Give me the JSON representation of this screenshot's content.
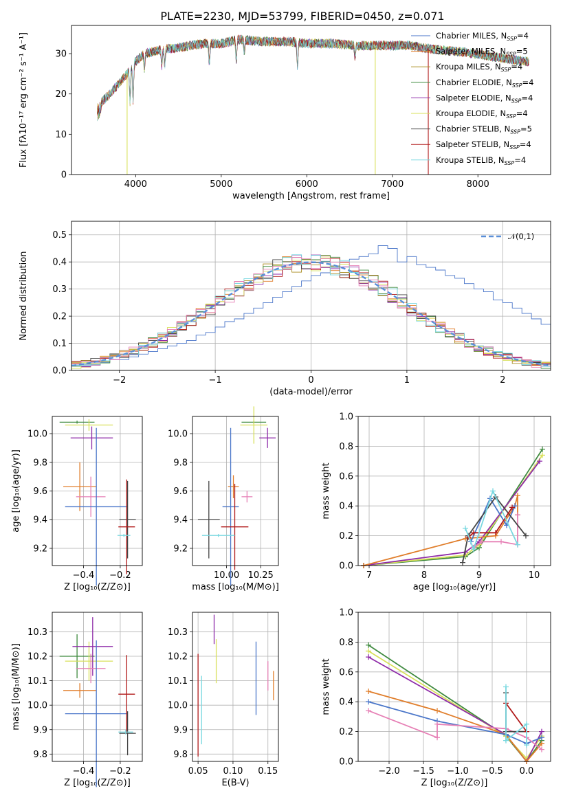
{
  "figure": {
    "title": "PLATE=2230, MJD=53799, FIBERID=0450, z=0.071"
  },
  "colors": {
    "chabrier_miles": "#4a76c9",
    "salpeter_miles": "#e07d2a",
    "kroupa_miles": "#a88a1c",
    "chabrier_elodie": "#3f8a3f",
    "salpeter_elodie": "#8e2aa8",
    "kroupa_elodie": "#d8e05a",
    "chabrier_stelib": "#444444",
    "salpeter_stelib": "#b01818",
    "kroupa_stelib": "#78d8e0",
    "pink": "#e67fb5",
    "normal": "#5a8fd8",
    "grid": "#b0b0b0"
  },
  "chart_data": [
    {
      "id": "spectrum",
      "type": "line",
      "title": "PLATE=2230, MJD=53799, FIBERID=0450, z=0.071",
      "xlabel": "wavelength [Angstrom, rest frame]",
      "ylabel": "Flux [fλ10⁻¹⁷ erg cm⁻² s⁻¹ A⁻¹]",
      "xlim": [
        3250,
        8850
      ],
      "ylim": [
        0,
        37
      ],
      "xticks": [
        4000,
        5000,
        6000,
        7000,
        8000
      ],
      "yticks": [
        0,
        10,
        20,
        30
      ],
      "grid": false,
      "legend_position": "top-right",
      "legend": [
        "Chabrier MILES, Nₛₚₚ=4",
        "Salpeter MILES, Nₛₚₚ=5",
        "Kroupa MILES, Nₛₚₚ=4",
        "Chabrier ELODIE, Nₛₚₚ=4",
        "Salpeter ELODIE, Nₛₚₚ=4",
        "Kroupa ELODIE, Nₛₚₚ=4",
        "Chabrier STELIB, Nₛₚₚ=5",
        "Salpeter STELIB, Nₛₚₚ=4",
        "Kroupa STELIB, Nₛₚₚ=4"
      ],
      "legend_display": [
        "Chabrier MILES, N_SSP=4",
        "Salpeter MILES, N_SSP=5",
        "Kroupa MILES, N_SSP=4",
        "Chabrier ELODIE, N_SSP=4",
        "Salpeter ELODIE, N_SSP=4",
        "Kroupa ELODIE, N_SSP=4",
        "Chabrier STELIB, N_SSP=5",
        "Salpeter STELIB, N_SSP=4",
        "Kroupa STELIB, N_SSP=4"
      ],
      "continuum": {
        "x": [
          3550,
          3700,
          3900,
          4000,
          4100,
          4300,
          4500,
          4800,
          5000,
          5200,
          5500,
          5800,
          6000,
          6300,
          6600,
          6900,
          7200,
          7500,
          7800,
          8100,
          8400,
          8600
        ],
        "y": [
          17,
          20,
          25,
          28,
          30,
          31,
          31.5,
          32.5,
          32.5,
          33.5,
          33,
          33,
          32.5,
          32.5,
          32,
          32,
          32,
          31,
          30.5,
          29.5,
          28.5,
          28
        ]
      },
      "absorption_lines": [
        {
          "x": 3934,
          "depth": 8
        },
        {
          "x": 3969,
          "depth": 9
        },
        {
          "x": 4102,
          "depth": 4
        },
        {
          "x": 4305,
          "depth": 4
        },
        {
          "x": 4340,
          "depth": 4
        },
        {
          "x": 4861,
          "depth": 5
        },
        {
          "x": 5175,
          "depth": 5
        },
        {
          "x": 5270,
          "depth": 3
        },
        {
          "x": 5892,
          "depth": 6
        },
        {
          "x": 6563,
          "depth": 3
        }
      ],
      "dropouts": [
        {
          "x": 3900,
          "color_key": "kroupa_elodie"
        },
        {
          "x": 6800,
          "color_key": "kroupa_elodie"
        },
        {
          "x": 7420,
          "color_key": "salpeter_stelib"
        }
      ]
    },
    {
      "id": "residuals",
      "type": "bar",
      "xlabel": "(data-model)/error",
      "ylabel": "Normed distribution",
      "xlim": [
        -2.5,
        2.5
      ],
      "ylim": [
        0,
        0.55
      ],
      "xticks": [
        -2,
        -1,
        0,
        1,
        2
      ],
      "yticks": [
        0.0,
        0.1,
        0.2,
        0.3,
        0.4,
        0.5
      ],
      "grid": true,
      "legend": [
        "𝒩(0, 1)"
      ],
      "legend_display": "𝒩(0,1)",
      "legend_position": "top-right",
      "bin_width": 0.1,
      "bin_start": -2.5,
      "series": [
        {
          "name": "Chabrier MILES",
          "color_key": "chabrier_miles",
          "values": [
            0.02,
            0.02,
            0.03,
            0.03,
            0.04,
            0.04,
            0.05,
            0.06,
            0.07,
            0.08,
            0.09,
            0.1,
            0.11,
            0.13,
            0.14,
            0.16,
            0.18,
            0.19,
            0.21,
            0.23,
            0.25,
            0.27,
            0.29,
            0.31,
            0.33,
            0.35,
            0.36,
            0.38,
            0.4,
            0.41,
            0.42,
            0.43,
            0.46,
            0.45,
            0.4,
            0.42,
            0.39,
            0.38,
            0.37,
            0.35,
            0.34,
            0.32,
            0.3,
            0.29,
            0.26,
            0.25,
            0.23,
            0.21,
            0.19,
            0.17
          ]
        }
      ],
      "normal_curve": {
        "mean": 0,
        "sigma": 1
      }
    },
    {
      "id": "age_vs_Z",
      "type": "scatter",
      "xlabel": "Z [log₁₀(Z/Z⊙)]",
      "ylabel": "age  [log₁₀(age/yr)]",
      "xlim": [
        -0.57,
        -0.08
      ],
      "ylim": [
        9.08,
        10.12
      ],
      "xticks": [
        -0.4,
        -0.2
      ],
      "yticks": [
        9.2,
        9.4,
        9.6,
        9.8,
        10.0
      ],
      "grid": true,
      "points": [
        {
          "x": -0.435,
          "y": 10.08,
          "xerr": 0.095,
          "yerr": 0.01,
          "color_key": "chabrier_elodie"
        },
        {
          "x": -0.37,
          "y": 10.06,
          "xerr": 0.13,
          "yerr": 0.04,
          "color_key": "kroupa_elodie"
        },
        {
          "x": -0.355,
          "y": 9.97,
          "xerr": 0.115,
          "yerr": 0.08,
          "color_key": "salpeter_elodie"
        },
        {
          "x": -0.42,
          "y": 9.63,
          "xerr": 0.09,
          "yerr": 0.17,
          "color_key": "salpeter_miles"
        },
        {
          "x": -0.36,
          "y": 9.56,
          "xerr": 0.08,
          "yerr": 0.14,
          "color_key": "pink"
        },
        {
          "x": -0.33,
          "y": 9.49,
          "xerr": 0.17,
          "yerr": 0.55,
          "color_key": "chabrier_miles"
        },
        {
          "x": -0.16,
          "y": 9.4,
          "xerr": 0.045,
          "yerr": 0.27,
          "color_key": "chabrier_stelib"
        },
        {
          "x": -0.165,
          "y": 9.35,
          "xerr": 0.045,
          "yerr": 0.33,
          "color_key": "salpeter_stelib"
        },
        {
          "x": -0.18,
          "y": 9.29,
          "xerr": 0.035,
          "yerr": 0.01,
          "color_key": "kroupa_stelib"
        }
      ]
    },
    {
      "id": "age_vs_mass",
      "type": "scatter",
      "xlabel": "mass [log₁₀(M/M⊙)]",
      "ylabel": "",
      "xlim": [
        9.75,
        10.38
      ],
      "ylim": [
        9.08,
        10.12
      ],
      "xticks": [
        10.0,
        10.25
      ],
      "yticks": [
        9.2,
        9.4,
        9.6,
        9.8,
        10.0
      ],
      "grid": true,
      "points": [
        {
          "x": 10.2,
          "y": 10.08,
          "xerr": 0.09,
          "yerr": 0.01,
          "color_key": "chabrier_elodie"
        },
        {
          "x": 10.2,
          "y": 10.06,
          "xerr": 0.1,
          "yerr": 0.13,
          "color_key": "kroupa_elodie"
        },
        {
          "x": 10.3,
          "y": 9.97,
          "xerr": 0.06,
          "yerr": 0.07,
          "color_key": "salpeter_elodie"
        },
        {
          "x": 10.05,
          "y": 9.63,
          "xerr": 0.04,
          "yerr": 0.08,
          "color_key": "salpeter_miles"
        },
        {
          "x": 10.15,
          "y": 9.56,
          "xerr": 0.04,
          "yerr": 0.04,
          "color_key": "pink"
        },
        {
          "x": 10.03,
          "y": 9.49,
          "xerr": 0.06,
          "yerr": 0.55,
          "color_key": "chabrier_miles"
        },
        {
          "x": 9.87,
          "y": 9.4,
          "xerr": 0.08,
          "yerr": 0.27,
          "color_key": "chabrier_stelib"
        },
        {
          "x": 10.06,
          "y": 9.35,
          "xerr": 0.1,
          "yerr": 0.3,
          "color_key": "salpeter_stelib"
        },
        {
          "x": 9.94,
          "y": 9.29,
          "xerr": 0.12,
          "yerr": 0.01,
          "color_key": "kroupa_stelib"
        }
      ]
    },
    {
      "id": "weight_vs_age",
      "type": "line",
      "xlabel": "age  [log₁₀(age/yr)]",
      "ylabel": "mass weight",
      "xlim": [
        6.8,
        10.3
      ],
      "ylim": [
        0.0,
        1.0
      ],
      "xticks": [
        7,
        8,
        9,
        10
      ],
      "yticks": [
        0.0,
        0.2,
        0.4,
        0.6,
        0.8,
        1.0
      ],
      "grid": true,
      "series": [
        {
          "color_key": "chabrier_elodie",
          "x": [
            6.9,
            8.75,
            9.0,
            10.15
          ],
          "y": [
            0.0,
            0.06,
            0.12,
            0.78
          ]
        },
        {
          "color_key": "kroupa_elodie",
          "x": [
            6.9,
            8.75,
            9.0,
            10.15
          ],
          "y": [
            0.0,
            0.07,
            0.14,
            0.74
          ]
        },
        {
          "color_key": "salpeter_elodie",
          "x": [
            6.9,
            8.75,
            9.0,
            10.1
          ],
          "y": [
            0.0,
            0.09,
            0.16,
            0.7
          ]
        },
        {
          "color_key": "salpeter_miles",
          "x": [
            6.9,
            8.75,
            9.3,
            9.65,
            9.7,
            9.7
          ],
          "y": [
            0.0,
            0.18,
            0.2,
            0.4,
            0.47,
            0.34
          ]
        },
        {
          "color_key": "pink",
          "x": [
            8.9,
            9.05,
            9.4,
            9.7,
            9.7
          ],
          "y": [
            0.12,
            0.16,
            0.16,
            0.14,
            0.34
          ]
        },
        {
          "color_key": "chabrier_miles",
          "x": [
            8.85,
            9.2,
            9.5,
            9.65
          ],
          "y": [
            0.16,
            0.45,
            0.27,
            0.4
          ]
        },
        {
          "color_key": "chabrier_stelib",
          "x": [
            8.7,
            8.8,
            9.3,
            9.85
          ],
          "y": [
            0.02,
            0.2,
            0.46,
            0.2
          ]
        },
        {
          "color_key": "salpeter_stelib",
          "x": [
            8.8,
            8.9,
            9.3,
            9.6
          ],
          "y": [
            0.19,
            0.22,
            0.22,
            0.39
          ]
        },
        {
          "color_key": "kroupa_stelib",
          "x": [
            8.75,
            8.9,
            9.25,
            9.7
          ],
          "y": [
            0.25,
            0.11,
            0.5,
            0.14
          ]
        }
      ]
    },
    {
      "id": "mass_vs_Z",
      "type": "scatter",
      "xlabel": "Z [log₁₀(Z/Z⊙)]",
      "ylabel": "mass [log₁₀(M/M⊙)]",
      "xlim": [
        -0.57,
        -0.08
      ],
      "ylim": [
        9.77,
        10.38
      ],
      "xticks": [
        -0.4,
        -0.2
      ],
      "yticks": [
        9.8,
        9.9,
        10.0,
        10.1,
        10.2,
        10.3
      ],
      "grid": true,
      "points": [
        {
          "x": -0.435,
          "y": 10.2,
          "xerr": 0.095,
          "yerr": 0.09,
          "color_key": "chabrier_elodie"
        },
        {
          "x": -0.37,
          "y": 10.18,
          "xerr": 0.13,
          "yerr": 0.08,
          "color_key": "kroupa_elodie"
        },
        {
          "x": -0.35,
          "y": 10.24,
          "xerr": 0.11,
          "yerr": 0.12,
          "color_key": "salpeter_elodie"
        },
        {
          "x": -0.42,
          "y": 10.06,
          "xerr": 0.09,
          "yerr": 0.03,
          "color_key": "salpeter_miles"
        },
        {
          "x": -0.36,
          "y": 10.15,
          "xerr": 0.08,
          "yerr": 0.06,
          "color_key": "pink"
        },
        {
          "x": -0.33,
          "y": 9.965,
          "xerr": 0.17,
          "yerr": 0.3,
          "color_key": "chabrier_miles"
        },
        {
          "x": -0.16,
          "y": 9.885,
          "xerr": 0.045,
          "yerr": 0.09,
          "color_key": "chabrier_stelib"
        },
        {
          "x": -0.165,
          "y": 10.045,
          "xerr": 0.045,
          "yerr": 0.16,
          "color_key": "salpeter_stelib"
        },
        {
          "x": -0.17,
          "y": 9.89,
          "xerr": 0.04,
          "yerr": 0.01,
          "color_key": "kroupa_stelib"
        }
      ]
    },
    {
      "id": "mass_vs_ebv",
      "type": "scatter",
      "xlabel": "E(B-V)",
      "ylabel": "",
      "xlim": [
        0.042,
        0.165
      ],
      "ylim": [
        9.77,
        10.38
      ],
      "xticks": [
        0.05,
        0.1,
        0.15
      ],
      "yticks": [
        9.8,
        9.9,
        10.0,
        10.1,
        10.2,
        10.3
      ],
      "grid": true,
      "points": [
        {
          "x": 0.05,
          "y": 10.0,
          "xerr": 0.0,
          "yerr": 0.21,
          "color_key": "salpeter_stelib"
        },
        {
          "x": 0.055,
          "y": 9.98,
          "xerr": 0.0,
          "yerr": 0.14,
          "color_key": "kroupa_stelib"
        },
        {
          "x": 0.073,
          "y": 10.31,
          "xerr": 0.0,
          "yerr": 0.06,
          "color_key": "salpeter_elodie"
        },
        {
          "x": 0.076,
          "y": 10.18,
          "xerr": 0.0,
          "yerr": 0.09,
          "color_key": "kroupa_elodie"
        },
        {
          "x": 0.133,
          "y": 10.11,
          "xerr": 0.0,
          "yerr": 0.15,
          "color_key": "chabrier_miles"
        },
        {
          "x": 0.15,
          "y": 10.12,
          "xerr": 0.0,
          "yerr": 0.06,
          "color_key": "pink"
        },
        {
          "x": 0.158,
          "y": 10.08,
          "xerr": 0.0,
          "yerr": 0.06,
          "color_key": "salpeter_miles"
        }
      ]
    },
    {
      "id": "weight_vs_Z",
      "type": "line",
      "xlabel": "Z [log₁₀(Z/Z⊙)]",
      "ylabel": "mass weight",
      "xlim": [
        -2.45,
        0.35
      ],
      "ylim": [
        0.0,
        1.0
      ],
      "xticks": [
        -2.0,
        -1.5,
        -1.0,
        -0.5,
        0.0
      ],
      "yticks": [
        0.0,
        0.2,
        0.4,
        0.6,
        0.8,
        1.0
      ],
      "grid": true,
      "series": [
        {
          "color_key": "chabrier_elodie",
          "x": [
            -2.3,
            -0.3,
            0.0,
            0.22
          ],
          "y": [
            0.78,
            0.17,
            0.0,
            0.14
          ]
        },
        {
          "color_key": "kroupa_elodie",
          "x": [
            -2.3,
            -0.3,
            0.0,
            0.22
          ],
          "y": [
            0.74,
            0.17,
            0.02,
            0.17
          ]
        },
        {
          "color_key": "salpeter_elodie",
          "x": [
            -2.3,
            -0.3,
            0.0,
            0.22
          ],
          "y": [
            0.7,
            0.18,
            0.0,
            0.2
          ]
        },
        {
          "color_key": "salpeter_miles",
          "x": [
            -2.3,
            -1.3,
            -0.3,
            0.0,
            0.22
          ],
          "y": [
            0.47,
            0.34,
            0.18,
            0.0,
            0.12
          ]
        },
        {
          "color_key": "chabrier_miles",
          "x": [
            -2.3,
            -1.3,
            -0.3,
            0.0,
            0.22
          ],
          "y": [
            0.4,
            0.27,
            0.18,
            0.12,
            0.16
          ]
        },
        {
          "color_key": "pink",
          "x": [
            -2.3,
            -1.3,
            -1.3,
            -0.3,
            0.0,
            0.22
          ],
          "y": [
            0.34,
            0.16,
            0.25,
            0.22,
            0.16,
            0.08
          ]
        },
        {
          "color_key": "chabrier_stelib",
          "x": [
            -0.3,
            -0.3,
            0.0
          ],
          "y": [
            0.46,
            0.2,
            0.2
          ]
        },
        {
          "color_key": "salpeter_stelib",
          "x": [
            -0.3,
            0.0
          ],
          "y": [
            0.39,
            0.2
          ]
        },
        {
          "color_key": "kroupa_stelib",
          "x": [
            -0.3,
            -0.3,
            0.0,
            0.0
          ],
          "y": [
            0.5,
            0.14,
            0.25,
            0.11
          ]
        }
      ]
    }
  ]
}
